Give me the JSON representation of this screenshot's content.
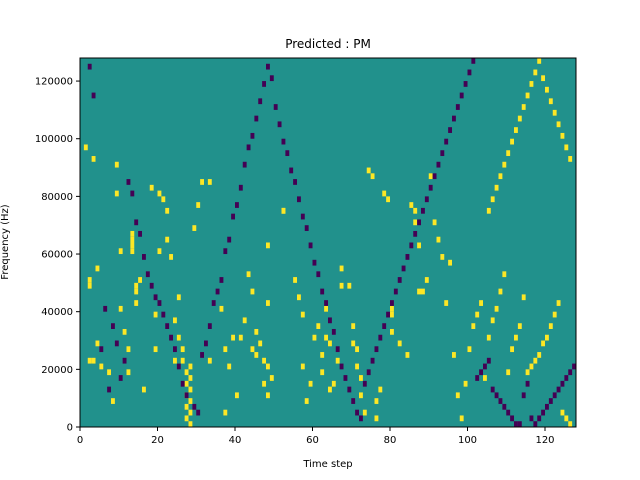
{
  "chart_data": {
    "type": "heatmap",
    "title": "Predicted : PM",
    "xlabel": "Time step",
    "ylabel": "Frequency (Hz)",
    "xlim": [
      0,
      128
    ],
    "ylim": [
      0,
      128000
    ],
    "x_ticks": [
      0,
      20,
      40,
      60,
      80,
      100,
      120
    ],
    "y_ticks": [
      0,
      20000,
      40000,
      60000,
      80000,
      100000,
      120000
    ],
    "grid": false,
    "colormap": "viridis",
    "colors": {
      "background": "#21918c",
      "high": "#fde725",
      "low": "#440154"
    },
    "cell_size": [
      1,
      2000
    ],
    "high_cells": [
      [
        1,
        96000
      ],
      [
        3,
        92000
      ],
      [
        4,
        54000
      ],
      [
        2,
        50000
      ],
      [
        2,
        48000
      ],
      [
        4,
        28000
      ],
      [
        3,
        22000
      ],
      [
        2,
        22000
      ],
      [
        5,
        20000
      ],
      [
        7,
        18000
      ],
      [
        8,
        8000
      ],
      [
        9,
        90000
      ],
      [
        9,
        80000
      ],
      [
        10,
        60000
      ],
      [
        10,
        40000
      ],
      [
        11,
        32000
      ],
      [
        12,
        26000
      ],
      [
        12,
        18000
      ],
      [
        13,
        66000
      ],
      [
        13,
        64000
      ],
      [
        13,
        62000
      ],
      [
        13,
        60000
      ],
      [
        14,
        48000
      ],
      [
        14,
        46000
      ],
      [
        14,
        42000
      ],
      [
        15,
        50000
      ],
      [
        16,
        12000
      ],
      [
        18,
        82000
      ],
      [
        19,
        38000
      ],
      [
        19,
        26000
      ],
      [
        20,
        80000
      ],
      [
        20,
        60000
      ],
      [
        21,
        78000
      ],
      [
        22,
        74000
      ],
      [
        22,
        64000
      ],
      [
        23,
        58000
      ],
      [
        24,
        36000
      ],
      [
        24,
        22000
      ],
      [
        25,
        44000
      ],
      [
        25,
        30000
      ],
      [
        26,
        26000
      ],
      [
        26,
        22000
      ],
      [
        27,
        18000
      ],
      [
        27,
        14000
      ],
      [
        27,
        10000
      ],
      [
        27,
        6000
      ],
      [
        27,
        2000
      ],
      [
        28,
        20000
      ],
      [
        28,
        16000
      ],
      [
        28,
        12000
      ],
      [
        28,
        8000
      ],
      [
        28,
        4000
      ],
      [
        28,
        0
      ],
      [
        29,
        68000
      ],
      [
        30,
        76000
      ],
      [
        31,
        84000
      ],
      [
        33,
        84000
      ],
      [
        33,
        22000
      ],
      [
        36,
        40000
      ],
      [
        37,
        26000
      ],
      [
        37,
        4000
      ],
      [
        38,
        20000
      ],
      [
        39,
        30000
      ],
      [
        40,
        10000
      ],
      [
        41,
        30000
      ],
      [
        42,
        36000
      ],
      [
        43,
        52000
      ],
      [
        44,
        46000
      ],
      [
        44,
        26000
      ],
      [
        45,
        32000
      ],
      [
        45,
        24000
      ],
      [
        46,
        28000
      ],
      [
        47,
        22000
      ],
      [
        47,
        14000
      ],
      [
        48,
        62000
      ],
      [
        48,
        42000
      ],
      [
        48,
        20000
      ],
      [
        48,
        10000
      ],
      [
        49,
        16000
      ],
      [
        52,
        74000
      ],
      [
        52,
        74000
      ],
      [
        55,
        50000
      ],
      [
        56,
        44000
      ],
      [
        57,
        38000
      ],
      [
        57,
        20000
      ],
      [
        58,
        8000
      ],
      [
        59,
        14000
      ],
      [
        60,
        30000
      ],
      [
        61,
        34000
      ],
      [
        62,
        24000
      ],
      [
        62,
        18000
      ],
      [
        63,
        40000
      ],
      [
        63,
        30000
      ],
      [
        64,
        12000
      ],
      [
        64,
        28000
      ],
      [
        65,
        14000
      ],
      [
        66,
        22000
      ],
      [
        67,
        54000
      ],
      [
        67,
        48000
      ],
      [
        69,
        48000
      ],
      [
        70,
        34000
      ],
      [
        70,
        28000
      ],
      [
        71,
        26000
      ],
      [
        71,
        20000
      ],
      [
        72,
        16000
      ],
      [
        72,
        10000
      ],
      [
        73,
        4000
      ],
      [
        74,
        88000
      ],
      [
        75,
        86000
      ],
      [
        76,
        8000
      ],
      [
        76,
        2000
      ],
      [
        77,
        12000
      ],
      [
        78,
        80000
      ],
      [
        79,
        78000
      ],
      [
        80,
        40000
      ],
      [
        80,
        38000
      ],
      [
        80,
        32000
      ],
      [
        82,
        28000
      ],
      [
        84,
        24000
      ],
      [
        85,
        76000
      ],
      [
        86,
        74000
      ],
      [
        86,
        70000
      ],
      [
        87,
        62000
      ],
      [
        87,
        46000
      ],
      [
        88,
        46000
      ],
      [
        89,
        50000
      ],
      [
        90,
        86000
      ],
      [
        91,
        70000
      ],
      [
        92,
        64000
      ],
      [
        93,
        58000
      ],
      [
        94,
        42000
      ],
      [
        95,
        56000
      ],
      [
        96,
        24000
      ],
      [
        97,
        10000
      ],
      [
        98,
        2000
      ],
      [
        99,
        14000
      ],
      [
        100,
        26000
      ],
      [
        101,
        34000
      ],
      [
        102,
        38000
      ],
      [
        103,
        42000
      ],
      [
        104,
        16000
      ],
      [
        105,
        30000
      ],
      [
        106,
        36000
      ],
      [
        107,
        40000
      ],
      [
        108,
        46000
      ],
      [
        109,
        52000
      ],
      [
        110,
        18000
      ],
      [
        111,
        26000
      ],
      [
        112,
        30000
      ],
      [
        113,
        34000
      ],
      [
        114,
        44000
      ],
      [
        115,
        18000
      ],
      [
        116,
        20000
      ],
      [
        117,
        22000
      ],
      [
        118,
        24000
      ],
      [
        119,
        28000
      ],
      [
        120,
        30000
      ],
      [
        121,
        34000
      ],
      [
        122,
        38000
      ],
      [
        123,
        42000
      ],
      [
        124,
        4000
      ],
      [
        125,
        2000
      ],
      [
        126,
        0
      ],
      [
        105,
        74000
      ],
      [
        106,
        78000
      ],
      [
        107,
        82000
      ],
      [
        108,
        86000
      ],
      [
        109,
        90000
      ],
      [
        110,
        94000
      ],
      [
        111,
        98000
      ],
      [
        112,
        102000
      ],
      [
        113,
        106000
      ],
      [
        114,
        110000
      ],
      [
        115,
        114000
      ],
      [
        116,
        118000
      ],
      [
        117,
        122000
      ],
      [
        118,
        126000
      ],
      [
        119,
        120000
      ],
      [
        120,
        116000
      ],
      [
        121,
        112000
      ],
      [
        122,
        108000
      ],
      [
        123,
        104000
      ],
      [
        124,
        100000
      ],
      [
        125,
        96000
      ],
      [
        126,
        92000
      ]
    ],
    "low_cells": [
      [
        2,
        124000
      ],
      [
        3,
        114000
      ],
      [
        5,
        26000
      ],
      [
        6,
        40000
      ],
      [
        7,
        12000
      ],
      [
        8,
        34000
      ],
      [
        9,
        28000
      ],
      [
        10,
        16000
      ],
      [
        11,
        22000
      ],
      [
        12,
        84000
      ],
      [
        13,
        80000
      ],
      [
        14,
        70000
      ],
      [
        15,
        66000
      ],
      [
        16,
        58000
      ],
      [
        17,
        52000
      ],
      [
        18,
        48000
      ],
      [
        19,
        44000
      ],
      [
        20,
        42000
      ],
      [
        21,
        38000
      ],
      [
        22,
        34000
      ],
      [
        23,
        30000
      ],
      [
        24,
        26000
      ],
      [
        25,
        20000
      ],
      [
        26,
        14000
      ],
      [
        27,
        10000
      ],
      [
        29,
        6000
      ],
      [
        30,
        4000
      ],
      [
        31,
        24000
      ],
      [
        32,
        28000
      ],
      [
        33,
        34000
      ],
      [
        34,
        42000
      ],
      [
        35,
        46000
      ],
      [
        36,
        50000
      ],
      [
        37,
        60000
      ],
      [
        38,
        64000
      ],
      [
        39,
        72000
      ],
      [
        40,
        76000
      ],
      [
        41,
        82000
      ],
      [
        42,
        90000
      ],
      [
        43,
        96000
      ],
      [
        44,
        100000
      ],
      [
        45,
        106000
      ],
      [
        46,
        112000
      ],
      [
        47,
        118000
      ],
      [
        48,
        124000
      ],
      [
        49,
        120000
      ],
      [
        50,
        110000
      ],
      [
        51,
        104000
      ],
      [
        52,
        98000
      ],
      [
        53,
        94000
      ],
      [
        54,
        88000
      ],
      [
        55,
        84000
      ],
      [
        56,
        78000
      ],
      [
        57,
        72000
      ],
      [
        58,
        68000
      ],
      [
        59,
        62000
      ],
      [
        60,
        56000
      ],
      [
        61,
        52000
      ],
      [
        62,
        46000
      ],
      [
        63,
        42000
      ],
      [
        64,
        36000
      ],
      [
        65,
        32000
      ],
      [
        66,
        26000
      ],
      [
        67,
        20000
      ],
      [
        68,
        16000
      ],
      [
        69,
        12000
      ],
      [
        70,
        8000
      ],
      [
        71,
        4000
      ],
      [
        72,
        2000
      ],
      [
        73,
        14000
      ],
      [
        74,
        18000
      ],
      [
        75,
        22000
      ],
      [
        76,
        26000
      ],
      [
        77,
        30000
      ],
      [
        78,
        34000
      ],
      [
        79,
        38000
      ],
      [
        80,
        42000
      ],
      [
        81,
        46000
      ],
      [
        82,
        50000
      ],
      [
        83,
        54000
      ],
      [
        84,
        58000
      ],
      [
        85,
        62000
      ],
      [
        86,
        66000
      ],
      [
        87,
        70000
      ],
      [
        88,
        74000
      ],
      [
        89,
        78000
      ],
      [
        90,
        82000
      ],
      [
        91,
        86000
      ],
      [
        92,
        90000
      ],
      [
        93,
        94000
      ],
      [
        94,
        98000
      ],
      [
        95,
        102000
      ],
      [
        96,
        106000
      ],
      [
        97,
        110000
      ],
      [
        98,
        114000
      ],
      [
        99,
        118000
      ],
      [
        100,
        122000
      ],
      [
        101,
        126000
      ],
      [
        102,
        16000
      ],
      [
        103,
        18000
      ],
      [
        104,
        20000
      ],
      [
        105,
        22000
      ],
      [
        106,
        12000
      ],
      [
        107,
        10000
      ],
      [
        108,
        8000
      ],
      [
        109,
        6000
      ],
      [
        110,
        4000
      ],
      [
        111,
        2000
      ],
      [
        112,
        0
      ],
      [
        113,
        0
      ],
      [
        114,
        10000
      ],
      [
        115,
        14000
      ],
      [
        116,
        2000
      ],
      [
        117,
        0
      ],
      [
        118,
        2000
      ],
      [
        119,
        4000
      ],
      [
        120,
        6000
      ],
      [
        121,
        8000
      ],
      [
        122,
        10000
      ],
      [
        123,
        12000
      ],
      [
        124,
        14000
      ],
      [
        125,
        16000
      ],
      [
        126,
        18000
      ],
      [
        127,
        20000
      ]
    ]
  }
}
